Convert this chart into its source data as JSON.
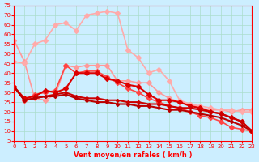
{
  "xlabel": "Vent moyen/en rafales ( km/h )",
  "xlim": [
    0,
    23
  ],
  "ylim": [
    5,
    75
  ],
  "yticks": [
    5,
    10,
    15,
    20,
    25,
    30,
    35,
    40,
    45,
    50,
    55,
    60,
    65,
    70,
    75
  ],
  "xticks": [
    0,
    1,
    2,
    3,
    4,
    5,
    6,
    7,
    8,
    9,
    10,
    11,
    12,
    13,
    14,
    15,
    16,
    17,
    18,
    19,
    20,
    21,
    22,
    23
  ],
  "background_color": "#cceeff",
  "grid_color": "#aaddcc",
  "series": [
    {
      "y": [
        57,
        46,
        27,
        26,
        29,
        44,
        43,
        44,
        44,
        44,
        36,
        36,
        35,
        35,
        30,
        27,
        25,
        24,
        22,
        21,
        21,
        20,
        21,
        21
      ],
      "color": "#ff9999",
      "linewidth": 1.2,
      "marker": "D",
      "markersize": 3
    },
    {
      "y": [
        33,
        26,
        29,
        30,
        31,
        44,
        40,
        41,
        41,
        38,
        35,
        32,
        30,
        27,
        25,
        23,
        22,
        20,
        18,
        17,
        15,
        12,
        11,
        10
      ],
      "color": "#ff4444",
      "linewidth": 1.2,
      "marker": "D",
      "markersize": 3
    },
    {
      "y": [
        46,
        45,
        55,
        57,
        65,
        66,
        62,
        70,
        71,
        72,
        71,
        52,
        48,
        40,
        42,
        36,
        26,
        24,
        23,
        22,
        21,
        21,
        20,
        20
      ],
      "color": "#ffaaaa",
      "linewidth": 1.2,
      "marker": "D",
      "markersize": 3
    },
    {
      "y": [
        33,
        27,
        28,
        31,
        30,
        32,
        40,
        40,
        40,
        37,
        36,
        34,
        33,
        29,
        26,
        26,
        25,
        23,
        22,
        20,
        19,
        17,
        15,
        10
      ],
      "color": "#dd0000",
      "linewidth": 1.5,
      "marker": "D",
      "markersize": 3
    },
    {
      "y": [
        33,
        26,
        27,
        28,
        29,
        30,
        28,
        27,
        27,
        26,
        26,
        25,
        25,
        24,
        24,
        23,
        22,
        22,
        21,
        20,
        19,
        17,
        15,
        10
      ],
      "color": "#cc0000",
      "linewidth": 1.5,
      "marker": "D",
      "markersize": 2
    },
    {
      "y": [
        33,
        26,
        27,
        28,
        28,
        29,
        27,
        26,
        25,
        25,
        24,
        24,
        23,
        23,
        22,
        21,
        21,
        20,
        19,
        18,
        17,
        15,
        13,
        10
      ],
      "color": "#bb0000",
      "linewidth": 1.5,
      "marker": "D",
      "markersize": 2
    }
  ]
}
